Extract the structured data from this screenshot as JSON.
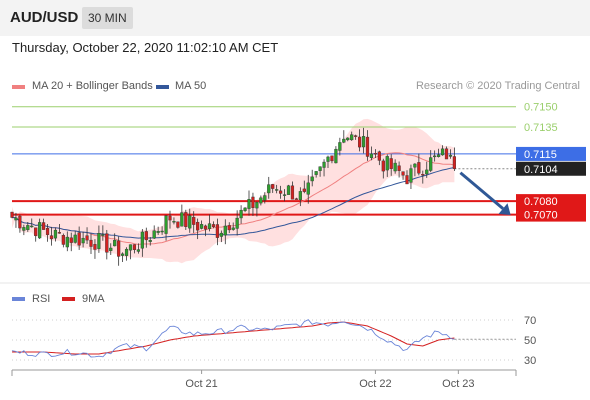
{
  "header": {
    "symbol": "AUD/USD",
    "timeframe": "30 MIN"
  },
  "timestamp": "Thursday, October 22, 2020 11:02:10 AM CET",
  "legend": {
    "ma": "MA 20 + Bollinger Bands",
    "ma50": "MA 50",
    "rsi": "RSI",
    "ma9": "9MA"
  },
  "credit": "Research © 2020 Trading Central",
  "colors": {
    "ma20": "#f08080",
    "ma50": "#33579a",
    "rsi": "#6a85d8",
    "ma9": "#d42020",
    "resistance": "#9bcf6d",
    "pivot": "#3d6ee6",
    "support": "#e01818",
    "candle_up": "#2e9e2e",
    "candle_down": "#d22020",
    "band": "#ffd6d6",
    "arrow": "#2f5896"
  },
  "chart_data": [
    {
      "type": "candlestick",
      "x_labels": [
        "Oct 21",
        "Oct 22",
        "Oct 23"
      ],
      "current_price": 0.7104,
      "levels": [
        {
          "value": 0.715,
          "label": "0.7150",
          "kind": "resistance"
        },
        {
          "value": 0.7135,
          "label": "0.7135",
          "kind": "resistance"
        },
        {
          "value": 0.7115,
          "label": "0.7115",
          "kind": "pivot"
        },
        {
          "value": 0.708,
          "label": "0.7080",
          "kind": "support"
        },
        {
          "value": 0.707,
          "label": "0.7070",
          "kind": "support"
        }
      ],
      "current_label": "0.7104",
      "path_anchors": [
        [
          0,
          0.7068
        ],
        [
          10,
          0.7055
        ],
        [
          22,
          0.705
        ],
        [
          28,
          0.7042
        ],
        [
          34,
          0.7052
        ],
        [
          40,
          0.7068
        ],
        [
          46,
          0.7063
        ],
        [
          52,
          0.7058
        ],
        [
          60,
          0.7075
        ],
        [
          66,
          0.709
        ],
        [
          70,
          0.7088
        ],
        [
          74,
          0.7082
        ],
        [
          80,
          0.7112
        ],
        [
          84,
          0.713
        ],
        [
          90,
          0.712
        ],
        [
          94,
          0.7108
        ],
        [
          100,
          0.7098
        ],
        [
          105,
          0.7108
        ],
        [
          110,
          0.7115
        ],
        [
          112,
          0.7104
        ]
      ],
      "forecast": {
        "from": 0.7104,
        "to": 0.707
      }
    },
    {
      "type": "line",
      "panel": "RSI",
      "y_ticks": [
        70,
        50,
        30
      ],
      "ylim": [
        20,
        80
      ],
      "rsi_anchors": [
        [
          0,
          38
        ],
        [
          8,
          36
        ],
        [
          16,
          38
        ],
        [
          22,
          34
        ],
        [
          28,
          44
        ],
        [
          34,
          42
        ],
        [
          40,
          62
        ],
        [
          46,
          56
        ],
        [
          52,
          58
        ],
        [
          58,
          62
        ],
        [
          64,
          60
        ],
        [
          70,
          64
        ],
        [
          76,
          68
        ],
        [
          80,
          66
        ],
        [
          84,
          70
        ],
        [
          90,
          62
        ],
        [
          96,
          48
        ],
        [
          100,
          40
        ],
        [
          104,
          52
        ],
        [
          108,
          58
        ],
        [
          112,
          53
        ]
      ],
      "ma9_anchors": [
        [
          0,
          38
        ],
        [
          8,
          38
        ],
        [
          16,
          36
        ],
        [
          22,
          36
        ],
        [
          28,
          40
        ],
        [
          34,
          44
        ],
        [
          40,
          50
        ],
        [
          46,
          54
        ],
        [
          52,
          56
        ],
        [
          58,
          58
        ],
        [
          64,
          60
        ],
        [
          70,
          62
        ],
        [
          76,
          64
        ],
        [
          80,
          67
        ],
        [
          84,
          68
        ],
        [
          90,
          64
        ],
        [
          96,
          54
        ],
        [
          100,
          46
        ],
        [
          104,
          44
        ],
        [
          108,
          50
        ],
        [
          112,
          52
        ]
      ]
    }
  ]
}
